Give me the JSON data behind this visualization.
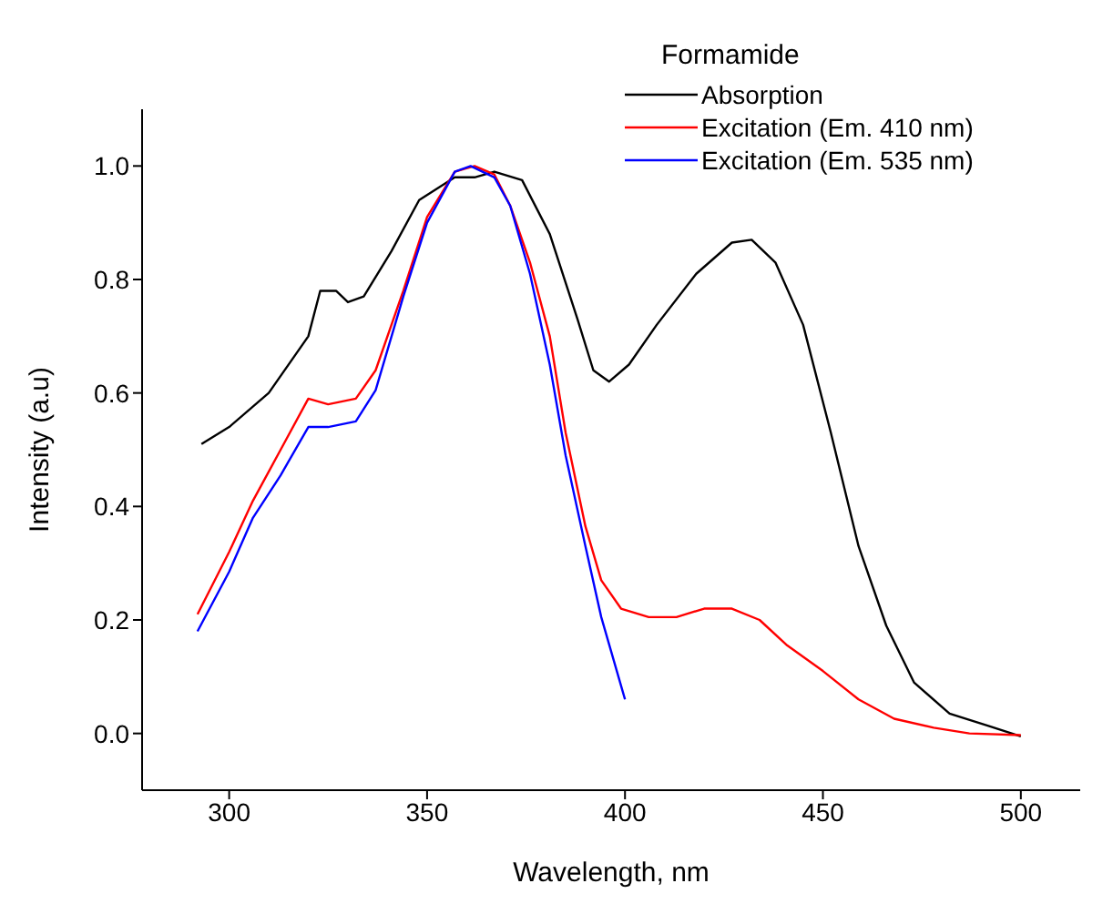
{
  "chart_data": {
    "type": "line",
    "xlabel": "Wavelength, nm",
    "ylabel": "Intensity (a.u)",
    "legend_title": "Formamide",
    "legend": "top right",
    "xlim": [
      278,
      515
    ],
    "xticks": [
      300,
      350,
      400,
      450,
      500
    ],
    "ylim": [
      -0.1,
      1.1
    ],
    "yticks": [
      {
        "value": 0,
        "label": "0.0"
      },
      {
        "value": 0.2,
        "label": "0.2"
      },
      {
        "value": 0.4,
        "label": "0.4"
      },
      {
        "value": 0.6,
        "label": "0.6"
      },
      {
        "value": 0.8,
        "label": "0.8"
      },
      {
        "value": 1,
        "label": "1.0"
      }
    ],
    "series": [
      {
        "name": "Absorption",
        "color": "#000000",
        "x": [
          293,
          300,
          310,
          320,
          323,
          327,
          330,
          334,
          341,
          348,
          357,
          362,
          367,
          374,
          381,
          388,
          392,
          396,
          401,
          408,
          418,
          427,
          432,
          438,
          445,
          452,
          459,
          466,
          473,
          482,
          492,
          500
        ],
        "values": [
          0.51,
          0.54,
          0.6,
          0.7,
          0.78,
          0.78,
          0.76,
          0.77,
          0.85,
          0.94,
          0.98,
          0.98,
          0.99,
          0.975,
          0.88,
          0.73,
          0.64,
          0.62,
          0.65,
          0.72,
          0.81,
          0.865,
          0.87,
          0.83,
          0.72,
          0.53,
          0.33,
          0.19,
          0.09,
          0.035,
          0.013,
          -0.005
        ]
      },
      {
        "name": "Excitation (Em. 410 nm)",
        "color": "#ff0000",
        "x": [
          292,
          300,
          306,
          313,
          320,
          325,
          332,
          337,
          344,
          350,
          357,
          362,
          367,
          371,
          376,
          381,
          385,
          390,
          394,
          399,
          406,
          413,
          420,
          427,
          434,
          441,
          450,
          459,
          468,
          478,
          487,
          500
        ],
        "values": [
          0.21,
          0.32,
          0.41,
          0.5,
          0.59,
          0.58,
          0.59,
          0.64,
          0.78,
          0.91,
          0.99,
          1.0,
          0.985,
          0.93,
          0.83,
          0.7,
          0.53,
          0.365,
          0.27,
          0.22,
          0.205,
          0.205,
          0.22,
          0.22,
          0.2,
          0.155,
          0.11,
          0.06,
          0.026,
          0.01,
          0,
          -0.003
        ]
      },
      {
        "name": "Excitation (Em. 535 nm)",
        "color": "#0000ff",
        "x": [
          292,
          300,
          306,
          313,
          320,
          325,
          332,
          337,
          344,
          350,
          357,
          361,
          367,
          371,
          376,
          381,
          385,
          390,
          394,
          400
        ],
        "values": [
          0.18,
          0.285,
          0.38,
          0.455,
          0.54,
          0.54,
          0.55,
          0.605,
          0.77,
          0.9,
          0.99,
          1.0,
          0.98,
          0.93,
          0.81,
          0.65,
          0.49,
          0.33,
          0.205,
          0.06
        ]
      }
    ]
  }
}
